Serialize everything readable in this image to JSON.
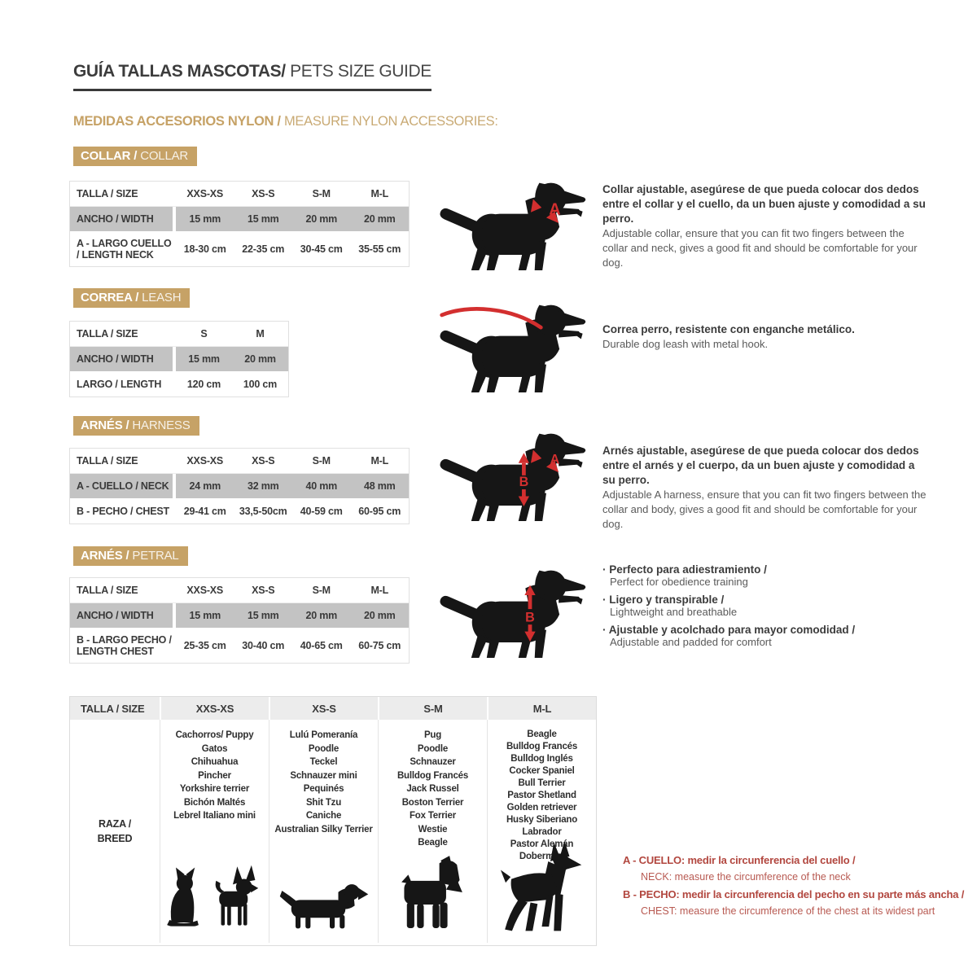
{
  "header": {
    "title_es": "GUÍA TALLAS MASCOTAS/",
    "title_en": " PETS SIZE GUIDE",
    "subtitle_es": "MEDIDAS ACCESORIOS NYLON /",
    "subtitle_en": " MEASURE NYLON ACCESSORIES:"
  },
  "markers": {
    "a": "A",
    "b": "B"
  },
  "collar": {
    "badge_es": "COLLAR /",
    "badge_en": " COLLAR",
    "col_headers": [
      "TALLA / SIZE",
      "XXS-XS",
      "XS-S",
      "S-M",
      "M-L"
    ],
    "row_width": {
      "label": "ANCHO / WIDTH",
      "values": [
        "15 mm",
        "15 mm",
        "20 mm",
        "20 mm"
      ]
    },
    "row_length": {
      "label": "A - LARGO CUELLO / LENGTH NECK",
      "values": [
        "18-30 cm",
        "22-35 cm",
        "30-45 cm",
        "35-55 cm"
      ]
    },
    "desc_es": "Collar ajustable, asegúrese de que pueda colocar dos dedos entre el collar y el cuello, da un buen ajuste y comodidad a su perro.",
    "desc_en": "Adjustable collar, ensure that you can fit two fingers between the collar and neck, gives a good fit and should be comfortable for your dog."
  },
  "leash": {
    "badge_es": "CORREA /",
    "badge_en": " LEASH",
    "col_headers": [
      "TALLA / SIZE",
      "S",
      "M"
    ],
    "row_width": {
      "label": "ANCHO / WIDTH",
      "values": [
        "15 mm",
        "20 mm"
      ]
    },
    "row_length": {
      "label": "LARGO / LENGTH",
      "values": [
        "120 cm",
        "100 cm"
      ]
    },
    "desc_es": "Correa perro, resistente con enganche metálico.",
    "desc_en": "Durable dog leash with metal hook."
  },
  "harness": {
    "badge_es": "ARNÉS /",
    "badge_en": " HARNESS",
    "col_headers": [
      "TALLA / SIZE",
      "XXS-XS",
      "XS-S",
      "S-M",
      "M-L"
    ],
    "row_neck": {
      "label": "A - CUELLO / NECK",
      "values": [
        "24 mm",
        "32 mm",
        "40 mm",
        "48 mm"
      ]
    },
    "row_chest": {
      "label": "B - PECHO / CHEST",
      "values": [
        "29-41 cm",
        "33,5-50cm",
        "40-59 cm",
        "60-95 cm"
      ]
    },
    "desc_es": "Arnés ajustable, asegúrese de que pueda colocar dos dedos entre el arnés y el cuerpo, da un buen ajuste y comodidad a su perro.",
    "desc_en": "Adjustable A harness, ensure that you can fit two fingers between the collar and body, gives a good fit and should be comfortable for your dog."
  },
  "petral": {
    "badge_es": "ARNÉS /",
    "badge_en": " PETRAL",
    "col_headers": [
      "TALLA / SIZE",
      "XXS-XS",
      "XS-S",
      "S-M",
      "M-L"
    ],
    "row_width": {
      "label": "ANCHO / WIDTH",
      "values": [
        "15 mm",
        "15 mm",
        "20 mm",
        "20 mm"
      ]
    },
    "row_length": {
      "label": "B - LARGO PECHO / LENGTH CHEST",
      "values": [
        "25-35 cm",
        "30-40 cm",
        "40-65 cm",
        "60-75 cm"
      ]
    },
    "bullets": [
      {
        "es": "Perfecto para adiestramiento /",
        "en": "Perfect for obedience training"
      },
      {
        "es": "Ligero y transpirable /",
        "en": "Lightweight and breathable"
      },
      {
        "es": "Ajustable y acolchado para mayor comodidad /",
        "en": "Adjustable and padded for comfort"
      }
    ]
  },
  "breeds": {
    "col_headers": [
      "TALLA /  SIZE",
      "XXS-XS",
      "XS-S",
      "S-M",
      "M-L"
    ],
    "row_label_line1": "RAZA /",
    "row_label_line2": "BREED",
    "xxs_xs": [
      "Cachorros/ Puppy",
      "Gatos",
      "Chihuahua",
      "Pincher",
      "Yorkshire terrier",
      "Bichón Maltés",
      "Lebrel Italiano mini"
    ],
    "xs_s": [
      "Lulú Pomeranía",
      "Poodle",
      "Teckel",
      "Schnauzer mini",
      "Pequinés",
      "Shit Tzu",
      "Caniche",
      "Australian Silky Terrier"
    ],
    "s_m": [
      "Pug",
      "Poodle",
      "Schnauzer",
      "Bulldog Francés",
      "Jack Russel",
      "Boston Terrier",
      "Fox Terrier",
      "Westie",
      "Beagle"
    ],
    "m_l": [
      "Beagle",
      "Bulldog Francés",
      "Bulldog Inglés",
      "Cocker Spaniel",
      "Bull Terrier",
      "Pastor Shetland",
      "Golden retriever",
      "Husky Siberiano",
      "Labrador",
      "Pastor Alemán",
      "Doberman"
    ]
  },
  "footnotes": {
    "a_es": "A - CUELLO: medir la circunferencia del cuello /",
    "a_en": "NECK: measure the circumference of the neck",
    "b_es": "B - PECHO: medir la circunferencia del pecho en su parte más ancha /",
    "b_en": "CHEST: measure the circumference of the chest at its widest part"
  },
  "colors": {
    "gold": "#c6a266",
    "shaded_row": "#c3c3c3",
    "marker_red": "#d32f2f",
    "footnote_red": "#b2473f"
  }
}
